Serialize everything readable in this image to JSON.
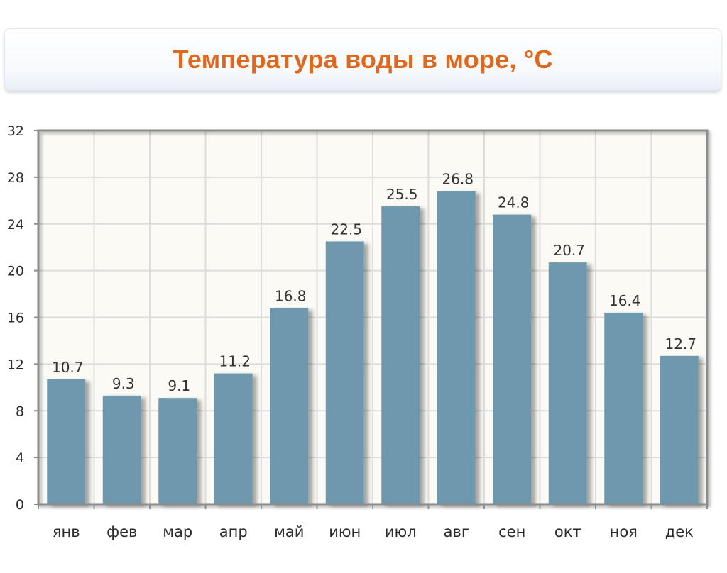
{
  "header": {
    "title": "Температура воды в море, °C"
  },
  "colors": {
    "bar": "#6e98ad",
    "bar_shadow": "#b9b9b9",
    "plot_background": "#fbfaf4",
    "grid": "#dcdcdc",
    "axis": "#8c8c8c",
    "title": "#e0681e"
  },
  "chart_data": {
    "type": "bar",
    "title": "Температура воды в море, °C",
    "xlabel": "",
    "ylabel": "",
    "categories": [
      "янв",
      "фев",
      "мар",
      "апр",
      "май",
      "июн",
      "июл",
      "авг",
      "сен",
      "окт",
      "ноя",
      "дек"
    ],
    "values": [
      10.7,
      9.3,
      9.1,
      11.2,
      16.8,
      22.5,
      25.5,
      26.8,
      24.8,
      20.7,
      16.4,
      12.7
    ],
    "value_labels": [
      "10.7",
      "9.3",
      "9.1",
      "11.2",
      "16.8",
      "22.5",
      "25.5",
      "26.8",
      "24.8",
      "20.7",
      "16.4",
      "12.7"
    ],
    "ylim": [
      0,
      32
    ],
    "yticks": [
      0,
      4,
      8,
      12,
      16,
      20,
      24,
      28,
      32
    ],
    "grid": true,
    "legend": "none"
  }
}
